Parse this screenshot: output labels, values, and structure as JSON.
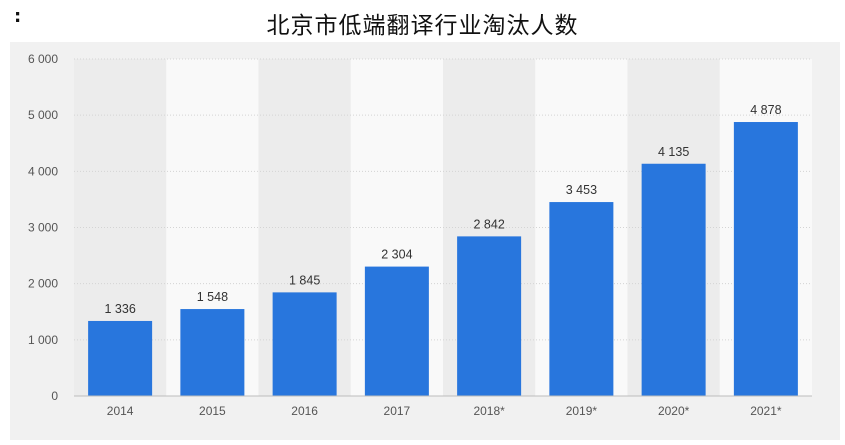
{
  "header": {
    "marker": ":"
  },
  "chart_data": {
    "type": "bar",
    "title": "北京市低端翻译行业淘汰人数",
    "xlabel": "",
    "ylabel": "",
    "categories": [
      "2014",
      "2015",
      "2016",
      "2017",
      "2018*",
      "2019*",
      "2020*",
      "2021*"
    ],
    "values": [
      1336,
      1548,
      1845,
      2304,
      2842,
      3453,
      4135,
      4878
    ],
    "value_labels": [
      "1 336",
      "1 548",
      "1 845",
      "2 304",
      "2 842",
      "3 453",
      "4 135",
      "4 878"
    ],
    "ylim": [
      0,
      6000
    ],
    "yticks": [
      0,
      1000,
      2000,
      3000,
      4000,
      5000,
      6000
    ],
    "ytick_labels": [
      "0",
      "1 000",
      "2 000",
      "3 000",
      "4 000",
      "5 000",
      "6 000"
    ],
    "grid": true,
    "colors": {
      "bar": "#2876dd",
      "panel": "#f1f1f1",
      "band_light": "#f9f9f9",
      "band_dark": "#ececec",
      "grid": "#d4d4d4"
    }
  }
}
